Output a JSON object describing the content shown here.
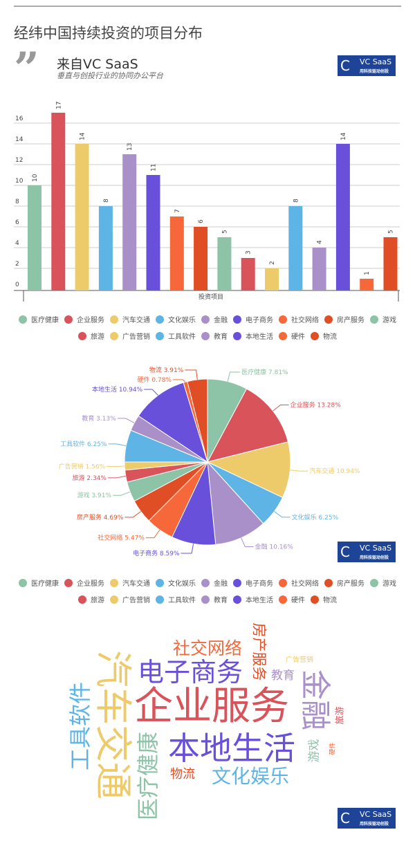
{
  "title": "经纬中国持续投资的项目分布",
  "source": {
    "label": "来自VC SaaS",
    "subtitle": "垂直与创投行业的协同办公平台"
  },
  "logo": {
    "name": "VC SaaS",
    "slogan": "用科技驱动创投",
    "mark": "C"
  },
  "colors": [
    "#8dc3a6",
    "#d9535b",
    "#eecb6a",
    "#5eb5e5",
    "#a990c9",
    "#6950da",
    "#f6683a",
    "#e04e26",
    "#8dc3a6",
    "#d9535b",
    "#eecb6a",
    "#5eb5e5",
    "#a990c9",
    "#6950da",
    "#f6683a",
    "#e04e26"
  ],
  "chart_data": [
    {
      "type": "bar",
      "xlabel": "投资项目",
      "ylim": [
        0,
        18
      ],
      "yticks": [
        0,
        2,
        4,
        6,
        8,
        10,
        12,
        14,
        16
      ],
      "grid": true,
      "categories": [
        "医疗健康",
        "企业服务",
        "汽车交通",
        "文化娱乐",
        "金融",
        "电子商务",
        "社交网络",
        "房产服务",
        "游戏",
        "旅游",
        "广告营销",
        "工具软件",
        "教育",
        "本地生活",
        "硬件",
        "物流"
      ],
      "values": [
        10,
        17,
        14,
        8,
        13,
        11,
        7,
        6,
        5,
        3,
        2,
        8,
        4,
        14,
        1,
        5
      ],
      "legend": "bottom"
    },
    {
      "type": "pie",
      "legend": "bottom",
      "categories": [
        "医疗健康",
        "企业服务",
        "汽车交通",
        "文化娱乐",
        "金融",
        "电子商务",
        "社交网络",
        "房产服务",
        "游戏",
        "旅游",
        "广告营销",
        "工具软件",
        "教育",
        "本地生活",
        "硬件",
        "物流"
      ],
      "values": [
        7.81,
        13.28,
        10.94,
        6.25,
        10.16,
        8.59,
        5.47,
        4.69,
        3.91,
        2.34,
        1.56,
        6.25,
        3.13,
        10.94,
        0.78,
        3.91
      ],
      "labels": [
        "医疗健康 7.81%",
        "企业服务 13.28%",
        "汽车交通 10.94%",
        "文化娱乐 6.25%",
        "金融 10.16%",
        "电子商务 8.59%",
        "社交网络 5.47%",
        "房产服务 4.69%",
        "游戏 3.91%",
        "旅游 2.34%",
        "广告营销 1.56%",
        "工具软件 6.25%",
        "教育 3.13%",
        "本地生活 10.94%",
        "硬件 0.78%",
        "物流 3.91%"
      ]
    }
  ],
  "wordcloud": [
    "企业服务",
    "本地生活",
    "汽车交通",
    "电子商务",
    "金融",
    "工具软件",
    "医疗健康",
    "文化娱乐",
    "社交网络",
    "房产服务",
    "物流",
    "教育",
    "广告营销",
    "旅游",
    "游戏",
    "硬件"
  ]
}
